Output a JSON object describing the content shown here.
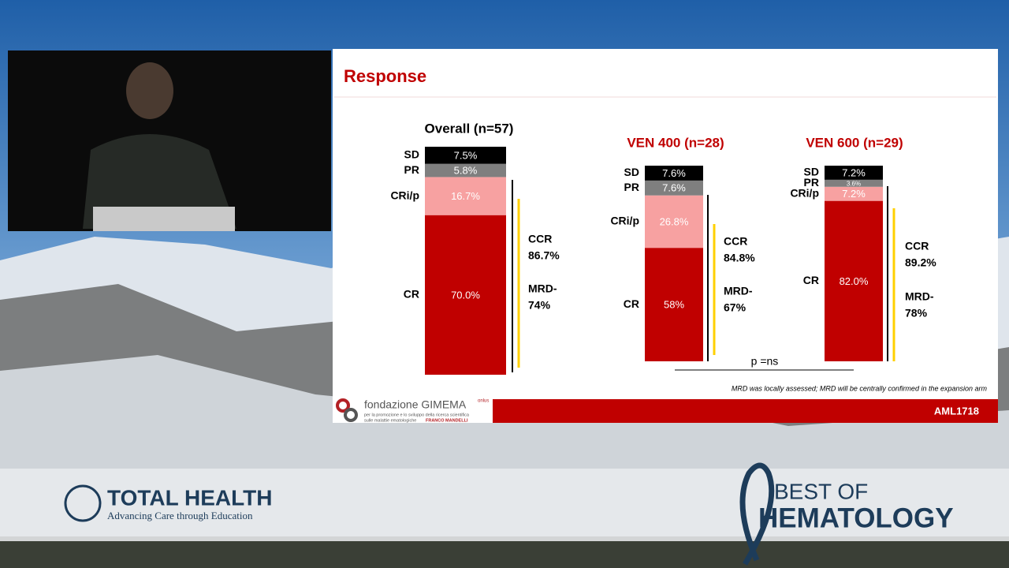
{
  "slide": {
    "title": "Response",
    "p_value": "p =ns",
    "footnote": "MRD was locally assessed; MRD will be centrally confirmed in the expansion arm",
    "footer_code": "AML1718"
  },
  "logo": {
    "name": "fondazione GIMEMA",
    "suffix": "onlus",
    "line1": "per la promozione e lo sviluppo della ricerca scientifica",
    "line2": "sulle malattie ematologiche",
    "founder": "FRANCO MANDELLI"
  },
  "banner": {
    "brand": "TOTAL HEALTH",
    "tagline": "Advancing Care through Education",
    "event_top": "BEST OF",
    "event_bottom": "HEMATOLOGY"
  },
  "chart_data": [
    {
      "type": "stacked_bar",
      "title": "Overall (n=57)",
      "title_color": "#000000",
      "series": [
        {
          "name": "CR",
          "color": "#c00000",
          "values": [
            70.0
          ],
          "value_labels": [
            "70.0%"
          ]
        },
        {
          "name": "CRi/p",
          "color": "#f7a1a1",
          "values": [
            16.7
          ],
          "value_labels": [
            "16.7%"
          ]
        },
        {
          "name": "PR",
          "color": "#7f7f7f",
          "values": [
            5.8
          ],
          "value_labels": [
            "5.8%"
          ]
        },
        {
          "name": "SD",
          "color": "#000000",
          "values": [
            7.5
          ],
          "value_labels": [
            "7.5%"
          ]
        }
      ],
      "annotations": [
        "CCR",
        "86.7%",
        "MRD-",
        "74%"
      ]
    },
    {
      "type": "stacked_bar",
      "title": "VEN 400 (n=28)",
      "title_color": "#c00000",
      "series": [
        {
          "name": "CR",
          "color": "#c00000",
          "values": [
            58
          ],
          "value_labels": [
            "58%"
          ]
        },
        {
          "name": "CRi/p",
          "color": "#f7a1a1",
          "values": [
            26.8
          ],
          "value_labels": [
            "26.8%"
          ]
        },
        {
          "name": "PR",
          "color": "#7f7f7f",
          "values": [
            7.6
          ],
          "value_labels": [
            "7.6%"
          ]
        },
        {
          "name": "SD",
          "color": "#000000",
          "values": [
            7.6
          ],
          "value_labels": [
            "7.6%"
          ]
        }
      ],
      "annotations": [
        "CCR",
        "84.8%",
        "MRD-",
        "67%"
      ]
    },
    {
      "type": "stacked_bar",
      "title": "VEN 600 (n=29)",
      "title_color": "#c00000",
      "series": [
        {
          "name": "CR",
          "color": "#c00000",
          "values": [
            82.0
          ],
          "value_labels": [
            "82.0%"
          ]
        },
        {
          "name": "CRi/p",
          "color": "#f7a1a1",
          "values": [
            7.2
          ],
          "value_labels": [
            "7.2%"
          ]
        },
        {
          "name": "PR",
          "color": "#7f7f7f",
          "values": [
            3.6
          ],
          "value_labels": [
            "3.6%"
          ]
        },
        {
          "name": "SD",
          "color": "#000000",
          "values": [
            7.2
          ],
          "value_labels": [
            "7.2%"
          ]
        }
      ],
      "annotations": [
        "CCR",
        "89.2%",
        "MRD-",
        "78%"
      ]
    }
  ]
}
